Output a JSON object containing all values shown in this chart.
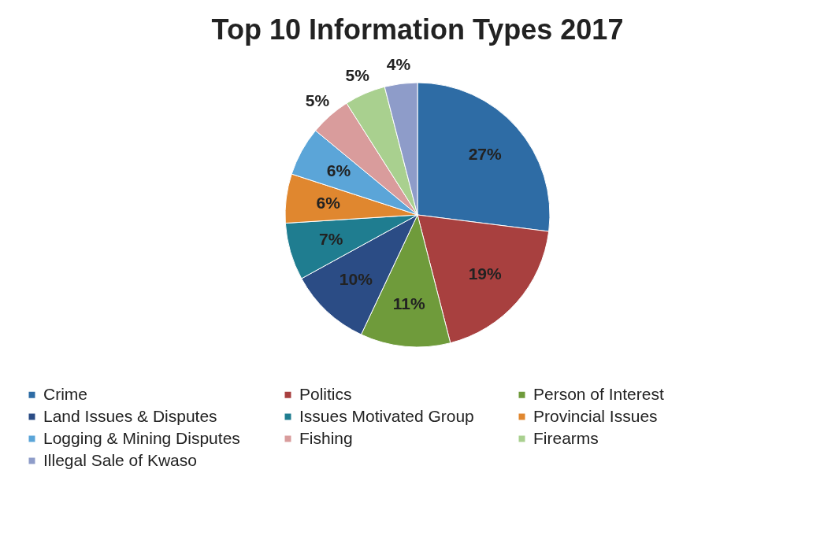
{
  "chart_data": {
    "type": "pie",
    "title": "Top 10 Information Types 2017",
    "categories": [
      "Crime",
      "Politics",
      "Person of Interest",
      "Land Issues & Disputes",
      "Issues Motivated Group",
      "Provincial Issues",
      "Logging & Mining Disputes",
      "Fishing",
      "Firearms",
      "Illegal Sale of Kwaso"
    ],
    "values": [
      27,
      19,
      11,
      10,
      7,
      6,
      6,
      5,
      5,
      4
    ],
    "value_labels": [
      "27%",
      "19%",
      "11%",
      "10%",
      "7%",
      "6%",
      "6%",
      "5%",
      "5%",
      "4%"
    ],
    "colors": [
      "#2e6ca5",
      "#a8403f",
      "#6f9b3b",
      "#2b4c85",
      "#1f7d90",
      "#e0872f",
      "#5ba5d8",
      "#d99c9c",
      "#a9d08f",
      "#8e9cc9"
    ],
    "legend": "bottom"
  }
}
